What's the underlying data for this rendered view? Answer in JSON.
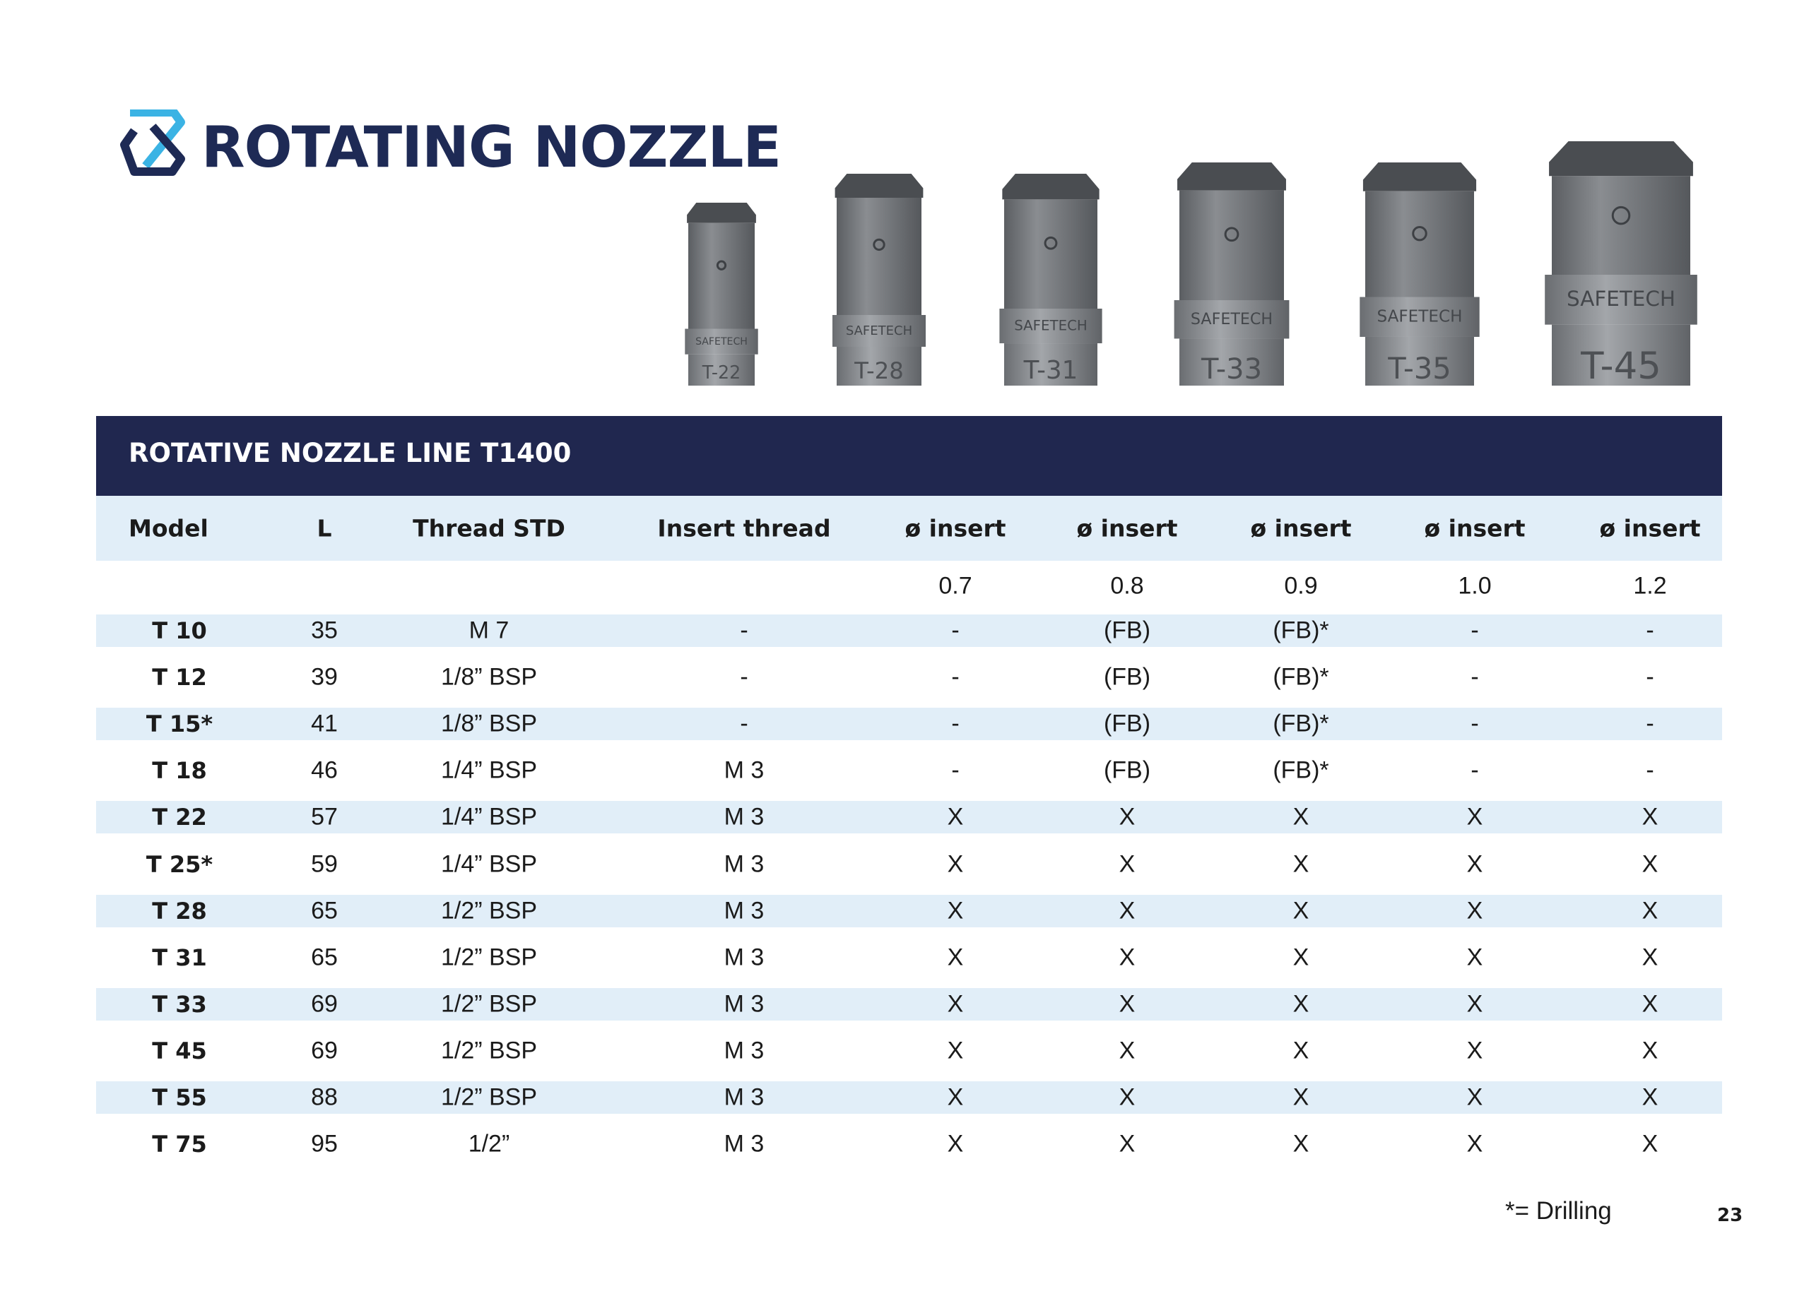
{
  "header": {
    "title": "ROTATING NOZZLE"
  },
  "nozzles": {
    "brand": "SAFETECH",
    "labels": [
      "T-22",
      "T-28",
      "T-31",
      "T-33",
      "T-35",
      "T-45"
    ]
  },
  "table": {
    "title": "ROTATIVE NOZZLE LINE T1400",
    "columns": [
      "Model",
      "L",
      "Thread STD",
      "Insert thread",
      "ø insert",
      "ø insert",
      "ø insert",
      "ø insert",
      "ø insert"
    ],
    "sizes": [
      "0.7",
      "0.8",
      "0.9",
      "1.0",
      "1.2"
    ],
    "rows": [
      [
        "T 10",
        "35",
        "M 7",
        "-",
        "-",
        "(FB)",
        "(FB)*",
        "-",
        "-"
      ],
      [
        "T 12",
        "39",
        "1/8” BSP",
        "-",
        "-",
        "(FB)",
        "(FB)*",
        "-",
        "-"
      ],
      [
        "T 15*",
        "41",
        "1/8” BSP",
        "-",
        "-",
        "(FB)",
        "(FB)*",
        "-",
        "-"
      ],
      [
        "T 18",
        "46",
        "1/4” BSP",
        "M 3",
        "-",
        "(FB)",
        "(FB)*",
        "-",
        "-"
      ],
      [
        "T 22",
        "57",
        "1/4” BSP",
        "M 3",
        "X",
        "X",
        "X",
        "X",
        "X"
      ],
      [
        "T 25*",
        "59",
        "1/4” BSP",
        "M 3",
        "X",
        "X",
        "X",
        "X",
        "X"
      ],
      [
        "T 28",
        "65",
        "1/2” BSP",
        "M 3",
        "X",
        "X",
        "X",
        "X",
        "X"
      ],
      [
        "T 31",
        "65",
        "1/2” BSP",
        "M 3",
        "X",
        "X",
        "X",
        "X",
        "X"
      ],
      [
        "T 33",
        "69",
        "1/2” BSP",
        "M 3",
        "X",
        "X",
        "X",
        "X",
        "X"
      ],
      [
        "T 45",
        "69",
        "1/2” BSP",
        "M 3",
        "X",
        "X",
        "X",
        "X",
        "X"
      ],
      [
        "T 55",
        "88",
        "1/2” BSP",
        "M 3",
        "X",
        "X",
        "X",
        "X",
        "X"
      ],
      [
        "T 75",
        "95",
        "1/2”",
        "M 3",
        "X",
        "X",
        "X",
        "X",
        "X"
      ]
    ]
  },
  "footnote": "*= Drilling",
  "page_number": "23"
}
